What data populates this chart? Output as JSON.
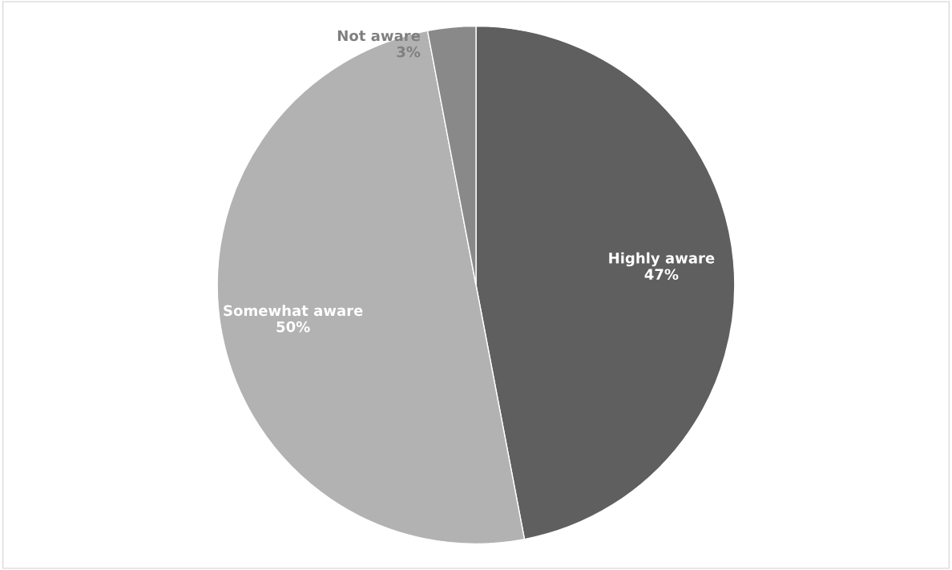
{
  "chart_data": {
    "type": "pie",
    "categories": [
      "Highly aware",
      "Somewhat aware",
      "Not aware"
    ],
    "values": [
      47,
      50,
      3
    ],
    "colors": [
      "#5f5f5f",
      "#b2b2b2",
      "#898989"
    ],
    "value_labels": [
      "47%",
      "50%",
      "3%"
    ],
    "legend": false
  }
}
